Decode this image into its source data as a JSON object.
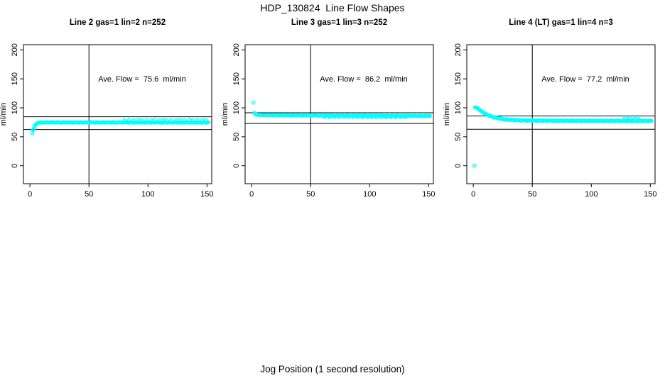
{
  "page": {
    "title": "HDP_130824  Line Flow Shapes",
    "xlabel": "Jog Position (1 second resolution)"
  },
  "colors": {
    "points": "#00FFFF",
    "axis": "#000000",
    "background": "#FFFFFF"
  },
  "chart_data": {
    "type": "scatter",
    "title": "HDP_130824  Line Flow Shapes",
    "xlabel": "Jog Position (1 second resolution)",
    "ylabel": "ml/min",
    "xlim": [
      -5.5,
      154
    ],
    "ylim": [
      -31,
      209
    ],
    "xticks": [
      0,
      50,
      100,
      150
    ],
    "yticks": [
      0,
      50,
      100,
      150,
      200
    ],
    "grid": false,
    "legend": "none",
    "marker": "open-circle",
    "panels": [
      {
        "title": "Line 2 gas=1 lin=2 n=252",
        "ylabel": "ml/min",
        "ave_flow": 75.6,
        "ave_flow_label": "Ave. Flow =  75.6  ml/min",
        "n": 252,
        "vline_x": 50,
        "hlines": [
          84.5,
          62.5
        ],
        "jitter": 0.9,
        "points_keyline": [
          [
            2,
            56
          ],
          [
            3,
            63
          ],
          [
            4,
            68.5
          ],
          [
            5,
            71.5
          ],
          [
            6,
            73.2
          ],
          [
            7,
            74.2
          ],
          [
            8,
            74.6
          ],
          [
            10,
            74.8
          ],
          [
            60,
            74.8
          ],
          [
            151,
            74.8
          ]
        ],
        "extra_points": [
          [
            80,
            78.3
          ],
          [
            84,
            78.8
          ],
          [
            88,
            78.4
          ],
          [
            92,
            79
          ],
          [
            95,
            78.5
          ],
          [
            99,
            78.9
          ],
          [
            103,
            78.4
          ],
          [
            106,
            79.1
          ],
          [
            110,
            78.6
          ],
          [
            113,
            79
          ],
          [
            116,
            78.5
          ],
          [
            120,
            78.9
          ],
          [
            124,
            78.4
          ],
          [
            127,
            79
          ],
          [
            131,
            78.6
          ],
          [
            135,
            79.2
          ],
          [
            138,
            78.6
          ],
          [
            142,
            78.9
          ],
          [
            146,
            78.5
          ],
          [
            149,
            78.8
          ]
        ]
      },
      {
        "title": "Line 3 gas=1 lin=3 n=252",
        "ylabel": "ml/min",
        "ave_flow": 86.2,
        "ave_flow_label": "Ave. Flow =  86.2  ml/min",
        "n": 252,
        "vline_x": 50,
        "hlines": [
          91.5,
          73
        ],
        "jitter": 1.0,
        "points_keyline": [
          [
            2.5,
            91
          ],
          [
            3,
            89.5
          ],
          [
            4,
            88.5
          ],
          [
            5,
            88
          ],
          [
            7,
            87.7
          ],
          [
            10,
            87.4
          ],
          [
            20,
            87.2
          ],
          [
            40,
            87
          ],
          [
            60,
            86.8
          ],
          [
            80,
            86.6
          ],
          [
            100,
            86.4
          ],
          [
            120,
            86.2
          ],
          [
            151,
            86
          ]
        ],
        "extra_points": [
          [
            1.5,
            109
          ],
          [
            62,
            84
          ],
          [
            66,
            83.6
          ],
          [
            70,
            84.1
          ],
          [
            74,
            83.7
          ],
          [
            78,
            84
          ],
          [
            82,
            83.5
          ],
          [
            86,
            83.9
          ],
          [
            90,
            83.6
          ],
          [
            94,
            84
          ],
          [
            98,
            83.5
          ],
          [
            102,
            83.8
          ],
          [
            106,
            83.4
          ],
          [
            110,
            83.9
          ],
          [
            114,
            83.6
          ],
          [
            118,
            84
          ],
          [
            122,
            83.7
          ],
          [
            126,
            84.1
          ],
          [
            130,
            83.8
          ]
        ]
      },
      {
        "title": "Line 4 (LT) gas=1 lin=4 n=3",
        "ylabel": "ml/min",
        "ave_flow": 77.2,
        "ave_flow_label": "Ave. Flow =  77.2  ml/min",
        "n": 3,
        "vline_x": 50,
        "hlines": [
          86,
          63
        ],
        "jitter": 1.5,
        "points_keyline": [
          [
            1.5,
            101
          ],
          [
            3,
            100
          ],
          [
            4,
            98.5
          ],
          [
            5,
            97
          ],
          [
            6,
            95.5
          ],
          [
            8,
            92.5
          ],
          [
            10,
            90
          ],
          [
            12,
            88
          ],
          [
            15,
            85.5
          ],
          [
            18,
            83.5
          ],
          [
            21,
            82
          ],
          [
            25,
            80.5
          ],
          [
            30,
            79.5
          ],
          [
            35,
            79
          ],
          [
            40,
            78.5
          ],
          [
            50,
            78
          ],
          [
            70,
            77.7
          ],
          [
            100,
            77.5
          ],
          [
            130,
            77.4
          ],
          [
            151,
            77.3
          ]
        ],
        "extra_points": [
          [
            1,
            0
          ],
          [
            128,
            81
          ],
          [
            131,
            81.3
          ],
          [
            134,
            80.8
          ],
          [
            137,
            81.2
          ],
          [
            140,
            80.9
          ]
        ]
      }
    ]
  }
}
